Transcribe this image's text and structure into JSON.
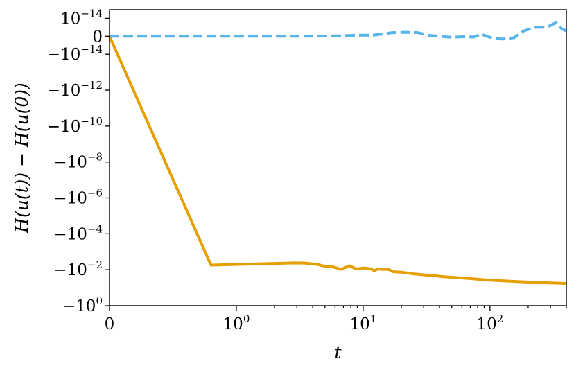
{
  "chart_data": {
    "type": "line",
    "xlabel": "t",
    "ylabel": "H(u(t)) − H(u(0))",
    "xscale": "symlog",
    "yscale": "symlog",
    "xlim": [
      0,
      400
    ],
    "ylim": [
      -1,
      3e-14
    ],
    "grid": false,
    "x_ticks": [
      {
        "value": 0,
        "base": "0",
        "exp": ""
      },
      {
        "value": 1,
        "base": "10",
        "exp": "0"
      },
      {
        "value": 10,
        "base": "10",
        "exp": "1"
      },
      {
        "value": 100,
        "base": "10",
        "exp": "2"
      }
    ],
    "y_ticks": [
      {
        "value": 1e-14,
        "base": "10",
        "exp": "−14"
      },
      {
        "value": 0,
        "base": "0",
        "exp": ""
      },
      {
        "value": -1e-14,
        "base": "−10",
        "exp": "−14"
      },
      {
        "value": -1e-12,
        "base": "−10",
        "exp": "−12"
      },
      {
        "value": -1e-10,
        "base": "−10",
        "exp": "−10"
      },
      {
        "value": -1e-08,
        "base": "−10",
        "exp": "−8"
      },
      {
        "value": -1e-06,
        "base": "−10",
        "exp": "−6"
      },
      {
        "value": -0.0001,
        "base": "−10",
        "exp": "−4"
      },
      {
        "value": -0.01,
        "base": "−10",
        "exp": "−2"
      },
      {
        "value": -1,
        "base": "−10",
        "exp": "0"
      }
    ],
    "series": [
      {
        "color": "#E69F00",
        "style": "solid",
        "points": [
          [
            0,
            0
          ],
          [
            0.8,
            -0.0055
          ],
          [
            2.9,
            -0.0042
          ],
          [
            3.5,
            -0.0043
          ],
          [
            4.3,
            -0.005
          ],
          [
            5.0,
            -0.0065
          ],
          [
            5.8,
            -0.007
          ],
          [
            6.7,
            -0.0095
          ],
          [
            7.8,
            -0.006
          ],
          [
            8.8,
            -0.009
          ],
          [
            10.2,
            -0.008
          ],
          [
            11.5,
            -0.009
          ],
          [
            12.3,
            -0.0115
          ],
          [
            13.0,
            -0.009
          ],
          [
            14.5,
            -0.0098
          ],
          [
            15.8,
            -0.0095
          ],
          [
            17.3,
            -0.013
          ],
          [
            20.3,
            -0.0138
          ],
          [
            25,
            -0.017
          ],
          [
            32,
            -0.02
          ],
          [
            45,
            -0.025
          ],
          [
            65,
            -0.03
          ],
          [
            100,
            -0.038
          ],
          [
            160,
            -0.045
          ],
          [
            250,
            -0.052
          ],
          [
            400,
            -0.058
          ]
        ]
      },
      {
        "color": "#56B4E9",
        "style": "dashed",
        "points": [
          [
            0,
            0
          ],
          [
            1,
            0
          ],
          [
            3,
            0
          ],
          [
            5,
            1e-16
          ],
          [
            7,
            3e-16
          ],
          [
            9,
            6e-16
          ],
          [
            12,
            6e-16
          ],
          [
            17,
            2e-15
          ],
          [
            22,
            2.2e-15
          ],
          [
            27,
            2e-15
          ],
          [
            33,
            5e-16
          ],
          [
            42,
            -2e-16
          ],
          [
            50,
            -6e-16
          ],
          [
            60,
            -3e-16
          ],
          [
            75,
            -4e-16
          ],
          [
            85,
            1.2e-15
          ],
          [
            100,
            -6e-16
          ],
          [
            125,
            -1.6e-15
          ],
          [
            155,
            -8e-16
          ],
          [
            185,
            3e-15
          ],
          [
            230,
            5e-15
          ],
          [
            280,
            5e-15
          ],
          [
            330,
            7.5e-15
          ],
          [
            370,
            4e-15
          ],
          [
            400,
            3e-15
          ]
        ]
      }
    ]
  }
}
